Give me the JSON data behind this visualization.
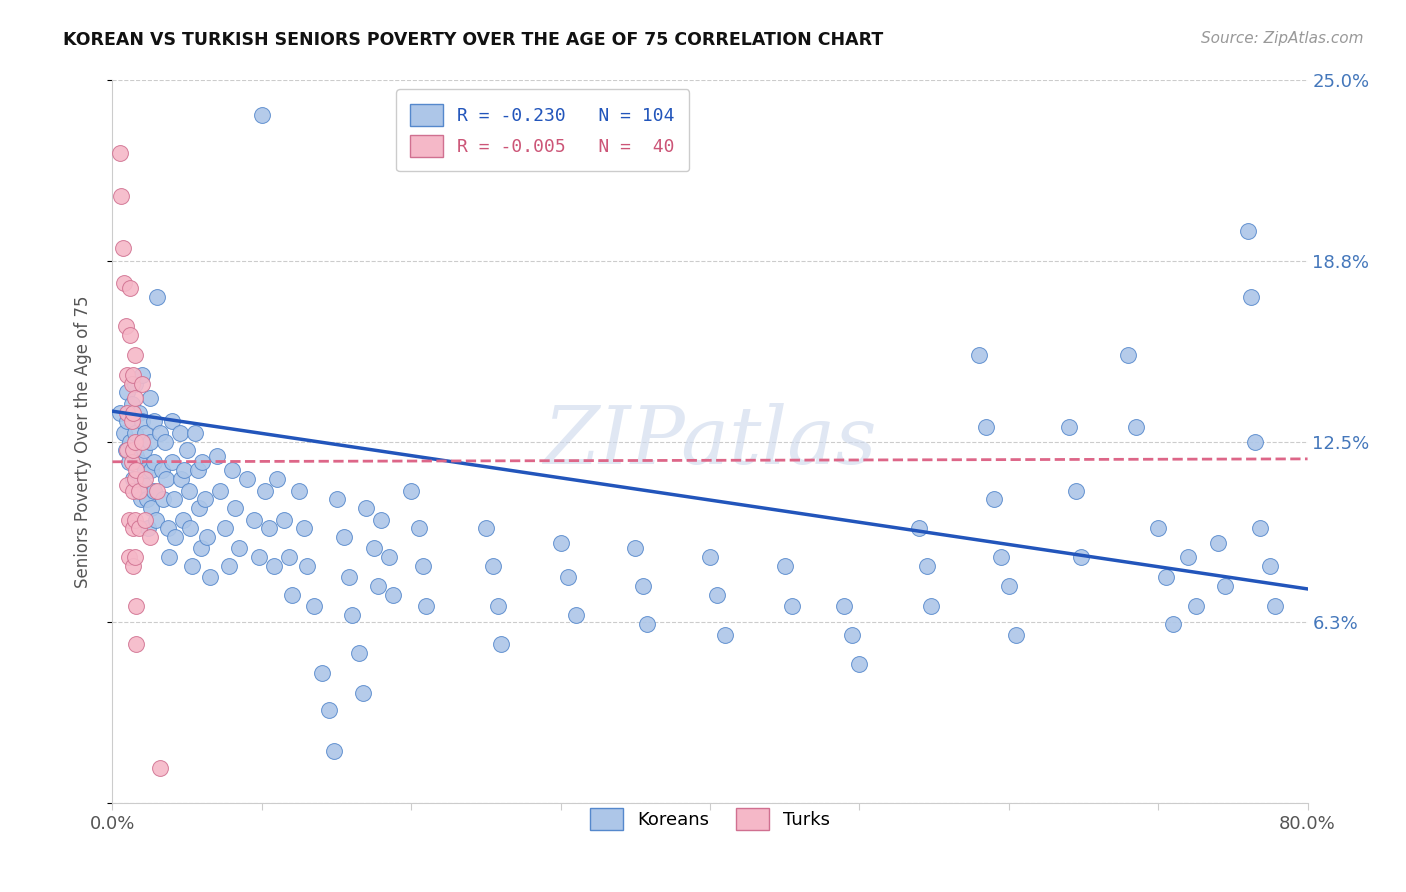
{
  "title": "KOREAN VS TURKISH SENIORS POVERTY OVER THE AGE OF 75 CORRELATION CHART",
  "source": "Source: ZipAtlas.com",
  "ylabel": "Seniors Poverty Over the Age of 75",
  "xlim": [
    0.0,
    0.8
  ],
  "ylim": [
    0.0,
    0.25
  ],
  "yticks": [
    0.0,
    0.0625,
    0.125,
    0.1875,
    0.25
  ],
  "ytick_labels": [
    "",
    "6.3%",
    "12.5%",
    "18.8%",
    "25.0%"
  ],
  "xticks": [
    0.0,
    0.1,
    0.2,
    0.3,
    0.4,
    0.5,
    0.6,
    0.7,
    0.8
  ],
  "xtick_labels": [
    "0.0%",
    "",
    "",
    "",
    "",
    "",
    "",
    "",
    "80.0%"
  ],
  "korean_color": "#adc6e8",
  "turkish_color": "#f5b8c8",
  "korean_edge_color": "#5588cc",
  "turkish_edge_color": "#d07090",
  "korean_line_color": "#2255bb",
  "turkish_line_color": "#dd6688",
  "watermark": "ZIPatlas",
  "korean_line": [
    0.0,
    0.1355,
    0.8,
    0.074
  ],
  "turkish_line": [
    0.0,
    0.118,
    0.8,
    0.119
  ],
  "korean_points": [
    [
      0.005,
      0.135
    ],
    [
      0.008,
      0.128
    ],
    [
      0.009,
      0.122
    ],
    [
      0.01,
      0.142
    ],
    [
      0.01,
      0.132
    ],
    [
      0.011,
      0.118
    ],
    [
      0.012,
      0.125
    ],
    [
      0.013,
      0.138
    ],
    [
      0.014,
      0.112
    ],
    [
      0.015,
      0.145
    ],
    [
      0.015,
      0.128
    ],
    [
      0.016,
      0.12
    ],
    [
      0.017,
      0.108
    ],
    [
      0.018,
      0.135
    ],
    [
      0.018,
      0.118
    ],
    [
      0.019,
      0.105
    ],
    [
      0.02,
      0.148
    ],
    [
      0.02,
      0.132
    ],
    [
      0.021,
      0.122
    ],
    [
      0.021,
      0.11
    ],
    [
      0.022,
      0.128
    ],
    [
      0.022,
      0.115
    ],
    [
      0.023,
      0.105
    ],
    [
      0.024,
      0.095
    ],
    [
      0.025,
      0.14
    ],
    [
      0.025,
      0.125
    ],
    [
      0.026,
      0.115
    ],
    [
      0.026,
      0.102
    ],
    [
      0.028,
      0.132
    ],
    [
      0.028,
      0.118
    ],
    [
      0.028,
      0.108
    ],
    [
      0.029,
      0.098
    ],
    [
      0.03,
      0.175
    ],
    [
      0.032,
      0.128
    ],
    [
      0.033,
      0.115
    ],
    [
      0.034,
      0.105
    ],
    [
      0.035,
      0.125
    ],
    [
      0.036,
      0.112
    ],
    [
      0.037,
      0.095
    ],
    [
      0.038,
      0.085
    ],
    [
      0.04,
      0.132
    ],
    [
      0.04,
      0.118
    ],
    [
      0.041,
      0.105
    ],
    [
      0.042,
      0.092
    ],
    [
      0.045,
      0.128
    ],
    [
      0.046,
      0.112
    ],
    [
      0.047,
      0.098
    ],
    [
      0.048,
      0.115
    ],
    [
      0.05,
      0.122
    ],
    [
      0.051,
      0.108
    ],
    [
      0.052,
      0.095
    ],
    [
      0.053,
      0.082
    ],
    [
      0.055,
      0.128
    ],
    [
      0.057,
      0.115
    ],
    [
      0.058,
      0.102
    ],
    [
      0.059,
      0.088
    ],
    [
      0.06,
      0.118
    ],
    [
      0.062,
      0.105
    ],
    [
      0.063,
      0.092
    ],
    [
      0.065,
      0.078
    ],
    [
      0.07,
      0.12
    ],
    [
      0.072,
      0.108
    ],
    [
      0.075,
      0.095
    ],
    [
      0.078,
      0.082
    ],
    [
      0.08,
      0.115
    ],
    [
      0.082,
      0.102
    ],
    [
      0.085,
      0.088
    ],
    [
      0.09,
      0.112
    ],
    [
      0.095,
      0.098
    ],
    [
      0.098,
      0.085
    ],
    [
      0.1,
      0.238
    ],
    [
      0.102,
      0.108
    ],
    [
      0.105,
      0.095
    ],
    [
      0.108,
      0.082
    ],
    [
      0.11,
      0.112
    ],
    [
      0.115,
      0.098
    ],
    [
      0.118,
      0.085
    ],
    [
      0.12,
      0.072
    ],
    [
      0.125,
      0.108
    ],
    [
      0.128,
      0.095
    ],
    [
      0.13,
      0.082
    ],
    [
      0.135,
      0.068
    ],
    [
      0.14,
      0.045
    ],
    [
      0.145,
      0.032
    ],
    [
      0.148,
      0.018
    ],
    [
      0.15,
      0.105
    ],
    [
      0.155,
      0.092
    ],
    [
      0.158,
      0.078
    ],
    [
      0.16,
      0.065
    ],
    [
      0.165,
      0.052
    ],
    [
      0.168,
      0.038
    ],
    [
      0.17,
      0.102
    ],
    [
      0.175,
      0.088
    ],
    [
      0.178,
      0.075
    ],
    [
      0.18,
      0.098
    ],
    [
      0.185,
      0.085
    ],
    [
      0.188,
      0.072
    ],
    [
      0.2,
      0.108
    ],
    [
      0.205,
      0.095
    ],
    [
      0.208,
      0.082
    ],
    [
      0.21,
      0.068
    ],
    [
      0.25,
      0.095
    ],
    [
      0.255,
      0.082
    ],
    [
      0.258,
      0.068
    ],
    [
      0.26,
      0.055
    ],
    [
      0.3,
      0.09
    ],
    [
      0.305,
      0.078
    ],
    [
      0.31,
      0.065
    ],
    [
      0.35,
      0.088
    ],
    [
      0.355,
      0.075
    ],
    [
      0.358,
      0.062
    ],
    [
      0.4,
      0.085
    ],
    [
      0.405,
      0.072
    ],
    [
      0.41,
      0.058
    ],
    [
      0.45,
      0.082
    ],
    [
      0.455,
      0.068
    ],
    [
      0.49,
      0.068
    ],
    [
      0.495,
      0.058
    ],
    [
      0.5,
      0.048
    ],
    [
      0.54,
      0.095
    ],
    [
      0.545,
      0.082
    ],
    [
      0.548,
      0.068
    ],
    [
      0.58,
      0.155
    ],
    [
      0.585,
      0.13
    ],
    [
      0.59,
      0.105
    ],
    [
      0.595,
      0.085
    ],
    [
      0.6,
      0.075
    ],
    [
      0.605,
      0.058
    ],
    [
      0.64,
      0.13
    ],
    [
      0.645,
      0.108
    ],
    [
      0.648,
      0.085
    ],
    [
      0.68,
      0.155
    ],
    [
      0.685,
      0.13
    ],
    [
      0.7,
      0.095
    ],
    [
      0.705,
      0.078
    ],
    [
      0.71,
      0.062
    ],
    [
      0.72,
      0.085
    ],
    [
      0.725,
      0.068
    ],
    [
      0.74,
      0.09
    ],
    [
      0.745,
      0.075
    ],
    [
      0.76,
      0.198
    ],
    [
      0.762,
      0.175
    ],
    [
      0.765,
      0.125
    ],
    [
      0.768,
      0.095
    ],
    [
      0.775,
      0.082
    ],
    [
      0.778,
      0.068
    ]
  ],
  "turkish_points": [
    [
      0.005,
      0.225
    ],
    [
      0.006,
      0.21
    ],
    [
      0.007,
      0.192
    ],
    [
      0.008,
      0.18
    ],
    [
      0.009,
      0.165
    ],
    [
      0.01,
      0.148
    ],
    [
      0.01,
      0.135
    ],
    [
      0.01,
      0.122
    ],
    [
      0.01,
      0.11
    ],
    [
      0.011,
      0.098
    ],
    [
      0.011,
      0.085
    ],
    [
      0.012,
      0.178
    ],
    [
      0.012,
      0.162
    ],
    [
      0.013,
      0.145
    ],
    [
      0.013,
      0.132
    ],
    [
      0.013,
      0.118
    ],
    [
      0.014,
      0.148
    ],
    [
      0.014,
      0.135
    ],
    [
      0.014,
      0.122
    ],
    [
      0.014,
      0.108
    ],
    [
      0.014,
      0.095
    ],
    [
      0.014,
      0.082
    ],
    [
      0.015,
      0.155
    ],
    [
      0.015,
      0.14
    ],
    [
      0.015,
      0.125
    ],
    [
      0.015,
      0.112
    ],
    [
      0.015,
      0.098
    ],
    [
      0.015,
      0.085
    ],
    [
      0.016,
      0.115
    ],
    [
      0.016,
      0.068
    ],
    [
      0.016,
      0.055
    ],
    [
      0.018,
      0.108
    ],
    [
      0.018,
      0.095
    ],
    [
      0.02,
      0.145
    ],
    [
      0.02,
      0.125
    ],
    [
      0.022,
      0.112
    ],
    [
      0.022,
      0.098
    ],
    [
      0.025,
      0.092
    ],
    [
      0.03,
      0.108
    ],
    [
      0.032,
      0.012
    ]
  ]
}
